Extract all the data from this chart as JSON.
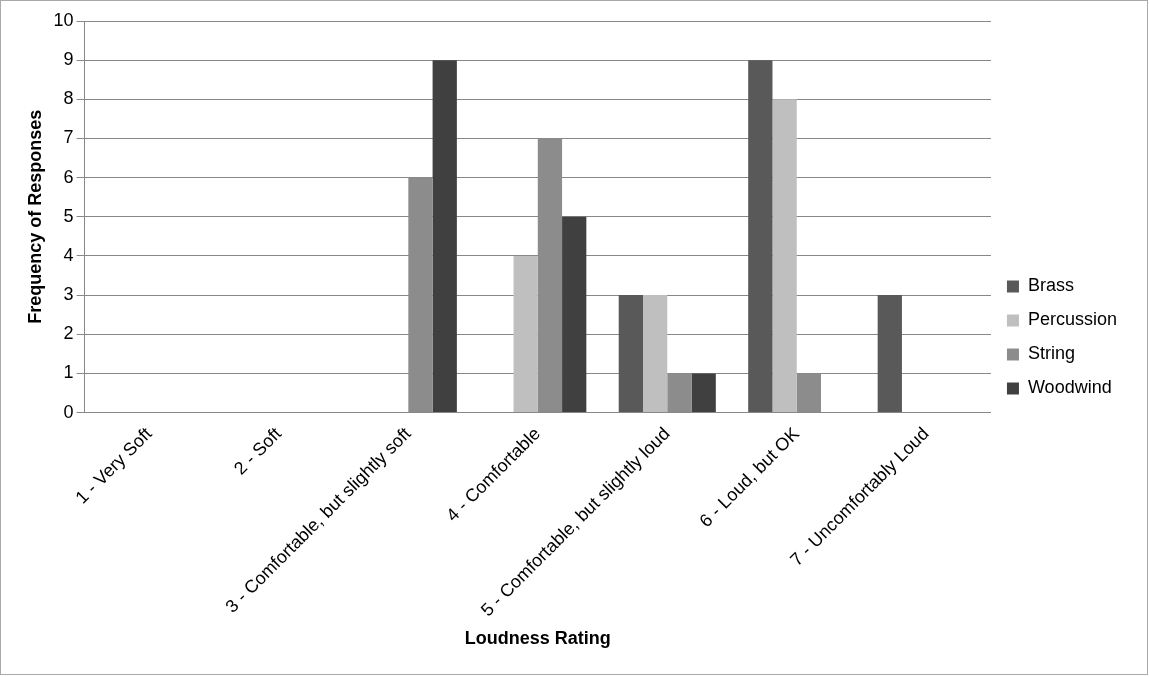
{
  "chart_data": {
    "type": "bar",
    "xlabel": "Loudness Rating",
    "ylabel": "Frequency of Responses",
    "categories": [
      "1 - Very Soft",
      "2 - Soft",
      "3 - Comfortable, but slightly soft",
      "4 - Comfortable",
      "5 - Comfortable, but slightly loud",
      "6 - Loud, but OK",
      "7 - Uncomfortably Loud"
    ],
    "series": [
      {
        "name": "Brass",
        "color": "#595959",
        "values": [
          0,
          0,
          0,
          0,
          3,
          9,
          3
        ]
      },
      {
        "name": "Percussion",
        "color": "#bfbfbf",
        "values": [
          0,
          0,
          0,
          4,
          3,
          8,
          0
        ]
      },
      {
        "name": "String",
        "color": "#8c8c8c",
        "values": [
          0,
          0,
          6,
          7,
          1,
          1,
          0
        ]
      },
      {
        "name": "Woodwind",
        "color": "#404040",
        "values": [
          0,
          0,
          9,
          5,
          1,
          0,
          0
        ]
      }
    ],
    "ylim": [
      0,
      10
    ],
    "yticks": [
      0,
      1,
      2,
      3,
      4,
      5,
      6,
      7,
      8,
      9,
      10
    ],
    "grid": "y",
    "legend": "right"
  }
}
